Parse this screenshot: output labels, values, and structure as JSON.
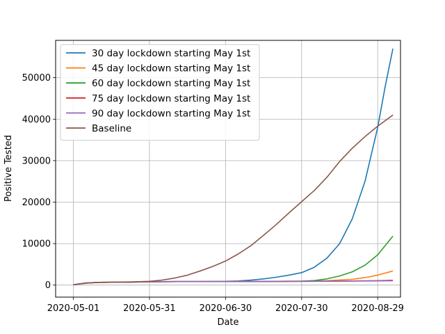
{
  "chart_data": {
    "type": "line",
    "xlabel": "Date",
    "ylabel": "Positive Tested",
    "x_ticks": [
      "2020-05-01",
      "2020-05-31",
      "2020-06-30",
      "2020-07-30",
      "2020-08-29"
    ],
    "y_ticks": [
      "0",
      "10000",
      "20000",
      "30000",
      "40000",
      "50000"
    ],
    "xlim": [
      "2020-04-24",
      "2020-09-07"
    ],
    "ylim": [
      -2900,
      59000
    ],
    "grid": true,
    "legend_position": "top-left",
    "series": [
      {
        "name": "30 day lockdown starting May 1st",
        "color": "#1f77b4",
        "points": [
          [
            "2020-05-01",
            100
          ],
          [
            "2020-05-06",
            500
          ],
          [
            "2020-05-11",
            650
          ],
          [
            "2020-05-21",
            700
          ],
          [
            "2020-05-31",
            800
          ],
          [
            "2020-06-10",
            850
          ],
          [
            "2020-06-20",
            850
          ],
          [
            "2020-06-30",
            900
          ],
          [
            "2020-07-05",
            1000
          ],
          [
            "2020-07-10",
            1200
          ],
          [
            "2020-07-15",
            1500
          ],
          [
            "2020-07-20",
            1900
          ],
          [
            "2020-07-25",
            2400
          ],
          [
            "2020-07-30",
            3000
          ],
          [
            "2020-08-04",
            4300
          ],
          [
            "2020-08-09",
            6500
          ],
          [
            "2020-08-14",
            10000
          ],
          [
            "2020-08-19",
            16000
          ],
          [
            "2020-08-24",
            25000
          ],
          [
            "2020-08-29",
            38000
          ],
          [
            "2020-09-01",
            48000
          ],
          [
            "2020-09-04",
            57000
          ]
        ]
      },
      {
        "name": "45 day lockdown starting May 1st",
        "color": "#ff7f0e",
        "points": [
          [
            "2020-05-01",
            100
          ],
          [
            "2020-05-06",
            500
          ],
          [
            "2020-05-11",
            650
          ],
          [
            "2020-05-21",
            700
          ],
          [
            "2020-05-31",
            800
          ],
          [
            "2020-06-15",
            850
          ],
          [
            "2020-06-30",
            850
          ],
          [
            "2020-07-15",
            880
          ],
          [
            "2020-07-30",
            950
          ],
          [
            "2020-08-09",
            1050
          ],
          [
            "2020-08-19",
            1400
          ],
          [
            "2020-08-24",
            1800
          ],
          [
            "2020-08-29",
            2400
          ],
          [
            "2020-09-04",
            3400
          ]
        ]
      },
      {
        "name": "60 day lockdown starting May 1st",
        "color": "#2ca02c",
        "points": [
          [
            "2020-05-01",
            100
          ],
          [
            "2020-05-06",
            500
          ],
          [
            "2020-05-11",
            650
          ],
          [
            "2020-05-21",
            700
          ],
          [
            "2020-05-31",
            800
          ],
          [
            "2020-06-15",
            850
          ],
          [
            "2020-06-30",
            850
          ],
          [
            "2020-07-15",
            880
          ],
          [
            "2020-07-30",
            950
          ],
          [
            "2020-08-04",
            1100
          ],
          [
            "2020-08-09",
            1500
          ],
          [
            "2020-08-14",
            2200
          ],
          [
            "2020-08-19",
            3200
          ],
          [
            "2020-08-24",
            4800
          ],
          [
            "2020-08-29",
            7300
          ],
          [
            "2020-09-04",
            11800
          ]
        ]
      },
      {
        "name": "75 day lockdown starting May 1st",
        "color": "#d62728",
        "points": [
          [
            "2020-05-01",
            100
          ],
          [
            "2020-05-06",
            500
          ],
          [
            "2020-05-11",
            650
          ],
          [
            "2020-05-21",
            700
          ],
          [
            "2020-05-31",
            800
          ],
          [
            "2020-06-15",
            850
          ],
          [
            "2020-06-30",
            850
          ],
          [
            "2020-07-15",
            870
          ],
          [
            "2020-07-30",
            900
          ],
          [
            "2020-08-14",
            950
          ],
          [
            "2020-08-29",
            1050
          ],
          [
            "2020-09-04",
            1150
          ]
        ]
      },
      {
        "name": "90 day lockdown starting May 1st",
        "color": "#9467bd",
        "points": [
          [
            "2020-05-01",
            100
          ],
          [
            "2020-05-06",
            500
          ],
          [
            "2020-05-11",
            650
          ],
          [
            "2020-05-21",
            700
          ],
          [
            "2020-05-31",
            800
          ],
          [
            "2020-06-15",
            850
          ],
          [
            "2020-06-30",
            850
          ],
          [
            "2020-07-15",
            870
          ],
          [
            "2020-07-30",
            900
          ],
          [
            "2020-08-14",
            950
          ],
          [
            "2020-08-29",
            1000
          ],
          [
            "2020-09-04",
            1050
          ]
        ]
      },
      {
        "name": "Baseline",
        "color": "#8c564b",
        "points": [
          [
            "2020-05-01",
            100
          ],
          [
            "2020-05-06",
            450
          ],
          [
            "2020-05-11",
            650
          ],
          [
            "2020-05-16",
            700
          ],
          [
            "2020-05-21",
            750
          ],
          [
            "2020-05-26",
            800
          ],
          [
            "2020-05-31",
            900
          ],
          [
            "2020-06-05",
            1200
          ],
          [
            "2020-06-10",
            1700
          ],
          [
            "2020-06-15",
            2400
          ],
          [
            "2020-06-20",
            3400
          ],
          [
            "2020-06-25",
            4500
          ],
          [
            "2020-06-30",
            5800
          ],
          [
            "2020-07-05",
            7500
          ],
          [
            "2020-07-10",
            9500
          ],
          [
            "2020-07-15",
            12000
          ],
          [
            "2020-07-20",
            14600
          ],
          [
            "2020-07-25",
            17400
          ],
          [
            "2020-07-30",
            20100
          ],
          [
            "2020-08-04",
            22800
          ],
          [
            "2020-08-09",
            26000
          ],
          [
            "2020-08-14",
            29800
          ],
          [
            "2020-08-19",
            33000
          ],
          [
            "2020-08-24",
            35800
          ],
          [
            "2020-08-29",
            38300
          ],
          [
            "2020-09-04",
            41000
          ]
        ]
      }
    ]
  }
}
